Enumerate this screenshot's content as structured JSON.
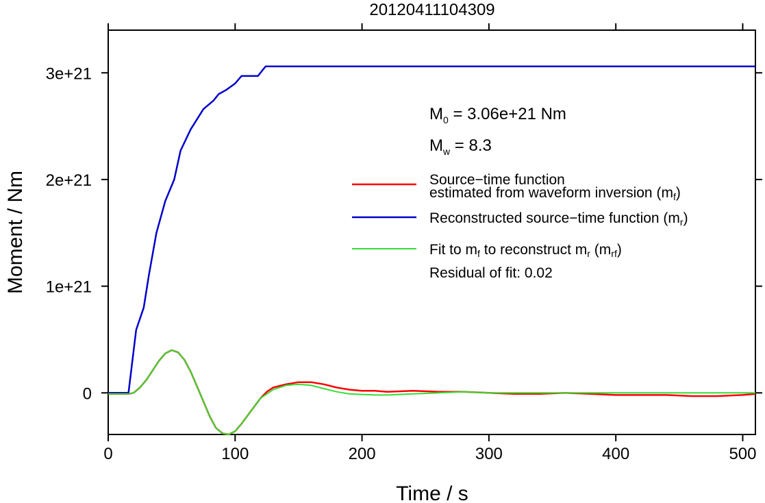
{
  "chart_data": {
    "type": "line",
    "title": "20120411104309",
    "xlabel": "Time / s",
    "ylabel": "Moment / Nm",
    "xlim": [
      0,
      510
    ],
    "ylim": [
      -3.9e+20,
      3.4e+21
    ],
    "xticks": [
      0,
      100,
      200,
      300,
      400,
      500
    ],
    "xtick_labels": [
      "0",
      "100",
      "200",
      "300",
      "400",
      "500"
    ],
    "yticks": [
      0,
      1e+21,
      2e+21,
      3e+21
    ],
    "ytick_labels": [
      "0",
      "1e+21",
      "2e+21",
      "3e+21"
    ],
    "grid": false,
    "legend_position": "right",
    "annotations": {
      "m0": {
        "main": "M",
        "sub": "0",
        "rest": " = 3.06e+21 Nm"
      },
      "mw": {
        "main": "M",
        "sub": "w",
        "rest": " = 8.3"
      },
      "residual": "Residual of fit: 0.02"
    },
    "series": [
      {
        "name": "Source−time function estimated from waveform inversion (mf)",
        "color": "#ff0000",
        "points": [
          [
            0,
            -1e+19
          ],
          [
            16,
            -1e+19
          ],
          [
            20,
            0
          ],
          [
            25,
            5e+19
          ],
          [
            30,
            1.2e+20
          ],
          [
            35,
            2.1e+20
          ],
          [
            40,
            3e+20
          ],
          [
            45,
            3.7e+20
          ],
          [
            50,
            4e+20
          ],
          [
            55,
            3.8e+20
          ],
          [
            60,
            3.1e+20
          ],
          [
            65,
            2e+20
          ],
          [
            70,
            6e+19
          ],
          [
            75,
            -8e+19
          ],
          [
            80,
            -2.2e+20
          ],
          [
            85,
            -3.3e+20
          ],
          [
            90,
            -3.8e+20
          ],
          [
            95,
            -3.9e+20
          ],
          [
            100,
            -3.6e+20
          ],
          [
            105,
            -2.9e+20
          ],
          [
            110,
            -2.1e+20
          ],
          [
            115,
            -1.3e+20
          ],
          [
            120,
            -5e+19
          ],
          [
            125,
            1e+19
          ],
          [
            130,
            5e+19
          ],
          [
            140,
            8e+19
          ],
          [
            150,
            1e+20
          ],
          [
            160,
            1e+20
          ],
          [
            170,
            8e+19
          ],
          [
            180,
            5e+19
          ],
          [
            190,
            3e+19
          ],
          [
            200,
            2e+19
          ],
          [
            210,
            2e+19
          ],
          [
            220,
            1e+19
          ],
          [
            240,
            2e+19
          ],
          [
            260,
            1e+19
          ],
          [
            280,
            1e+19
          ],
          [
            300,
            0
          ],
          [
            320,
            -1e+19
          ],
          [
            340,
            -1e+19
          ],
          [
            360,
            0
          ],
          [
            380,
            -1e+19
          ],
          [
            400,
            -2e+19
          ],
          [
            420,
            -2e+19
          ],
          [
            440,
            -2e+19
          ],
          [
            460,
            -3e+19
          ],
          [
            480,
            -3e+19
          ],
          [
            500,
            -2e+19
          ],
          [
            510,
            -1e+19
          ]
        ]
      },
      {
        "name": "Reconstructed source−time function (mr)",
        "color": "#0000cc",
        "points": [
          [
            0,
            0
          ],
          [
            16,
            0
          ],
          [
            22,
            5.9e+20
          ],
          [
            28,
            8e+20
          ],
          [
            32,
            1.1e+21
          ],
          [
            38,
            1.5e+21
          ],
          [
            45,
            1.8e+21
          ],
          [
            52,
            2e+21
          ],
          [
            57,
            2.27e+21
          ],
          [
            65,
            2.47e+21
          ],
          [
            75,
            2.66e+21
          ],
          [
            83,
            2.74e+21
          ],
          [
            87,
            2.8e+21
          ],
          [
            93,
            2.84e+21
          ],
          [
            100,
            2.9e+21
          ],
          [
            105,
            2.97e+21
          ],
          [
            118,
            2.97e+21
          ],
          [
            124,
            3.06e+21
          ],
          [
            510,
            3.06e+21
          ]
        ]
      },
      {
        "name": "Fit to mf to reconstruct mr (mrf)",
        "color": "#33dd33",
        "points": [
          [
            0,
            -1e+19
          ],
          [
            16,
            -1e+19
          ],
          [
            20,
            0
          ],
          [
            25,
            5e+19
          ],
          [
            30,
            1.2e+20
          ],
          [
            35,
            2.1e+20
          ],
          [
            40,
            3e+20
          ],
          [
            45,
            3.7e+20
          ],
          [
            50,
            4e+20
          ],
          [
            55,
            3.8e+20
          ],
          [
            60,
            3.1e+20
          ],
          [
            65,
            2e+20
          ],
          [
            70,
            6e+19
          ],
          [
            75,
            -8e+19
          ],
          [
            80,
            -2.2e+20
          ],
          [
            85,
            -3.3e+20
          ],
          [
            90,
            -3.8e+20
          ],
          [
            95,
            -3.9e+20
          ],
          [
            100,
            -3.6e+20
          ],
          [
            105,
            -2.9e+20
          ],
          [
            110,
            -2.1e+20
          ],
          [
            115,
            -1.3e+20
          ],
          [
            120,
            -5e+19
          ],
          [
            130,
            3e+19
          ],
          [
            140,
            7e+19
          ],
          [
            150,
            8e+19
          ],
          [
            160,
            7e+19
          ],
          [
            170,
            4e+19
          ],
          [
            180,
            1e+19
          ],
          [
            190,
            -1e+19
          ],
          [
            200,
            -1.5e+19
          ],
          [
            210,
            -2e+19
          ],
          [
            220,
            -2e+19
          ],
          [
            240,
            -1e+19
          ],
          [
            260,
            0
          ],
          [
            280,
            1e+19
          ],
          [
            300,
            0
          ],
          [
            320,
            0
          ],
          [
            340,
            0
          ],
          [
            360,
            0
          ],
          [
            380,
            0
          ],
          [
            400,
            0
          ],
          [
            420,
            0
          ],
          [
            440,
            0
          ],
          [
            460,
            0
          ],
          [
            480,
            0
          ],
          [
            500,
            0
          ],
          [
            510,
            0
          ]
        ]
      }
    ],
    "legend": [
      {
        "line1": "Source−time function",
        "line2_main": "estimated from waveform inversion (m",
        "line2_sub": "f",
        "line2_end": ")",
        "color": "#ff0000"
      },
      {
        "main": "Reconstructed source−time function (m",
        "sub": "r",
        "end": ")",
        "color": "#0000cc"
      },
      {
        "main1": "Fit to m",
        "sub1": "f",
        "main2": " to reconstruct m",
        "sub2": "r",
        "main3": " (m",
        "sub3": "rf",
        "end": ")",
        "color": "#33dd33"
      }
    ]
  }
}
